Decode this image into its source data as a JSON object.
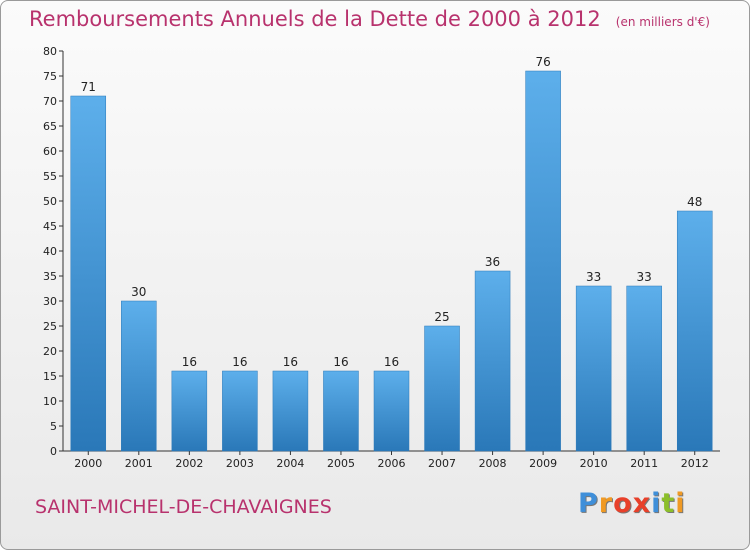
{
  "chart_data": {
    "type": "bar",
    "title": "Remboursements Annuels de la Dette de 2000 à 2012",
    "unit_label": "(en milliers d'€)",
    "subtitle": "SAINT-MICHEL-DE-CHAVAIGNES",
    "categories": [
      "2000",
      "2001",
      "2002",
      "2003",
      "2004",
      "2005",
      "2006",
      "2007",
      "2008",
      "2009",
      "2010",
      "2011",
      "2012"
    ],
    "values": [
      71,
      30,
      16,
      16,
      16,
      16,
      16,
      25,
      36,
      76,
      33,
      33,
      48
    ],
    "ylim": [
      0,
      80
    ],
    "yticks": [
      0,
      5,
      10,
      15,
      20,
      25,
      30,
      35,
      40,
      45,
      50,
      55,
      60,
      65,
      70,
      75,
      80
    ],
    "grid": false,
    "bar_color": "#3f95d6",
    "bar_color_light": "#5dafeb",
    "bar_color_dark": "#2a78b8"
  },
  "logo": {
    "text": "Proxiti",
    "colors": [
      "#3f8fd9",
      "#f09a24",
      "#e8402a",
      "#e8402a",
      "#3f8fd9",
      "#8cbf2a",
      "#f09a24"
    ]
  }
}
